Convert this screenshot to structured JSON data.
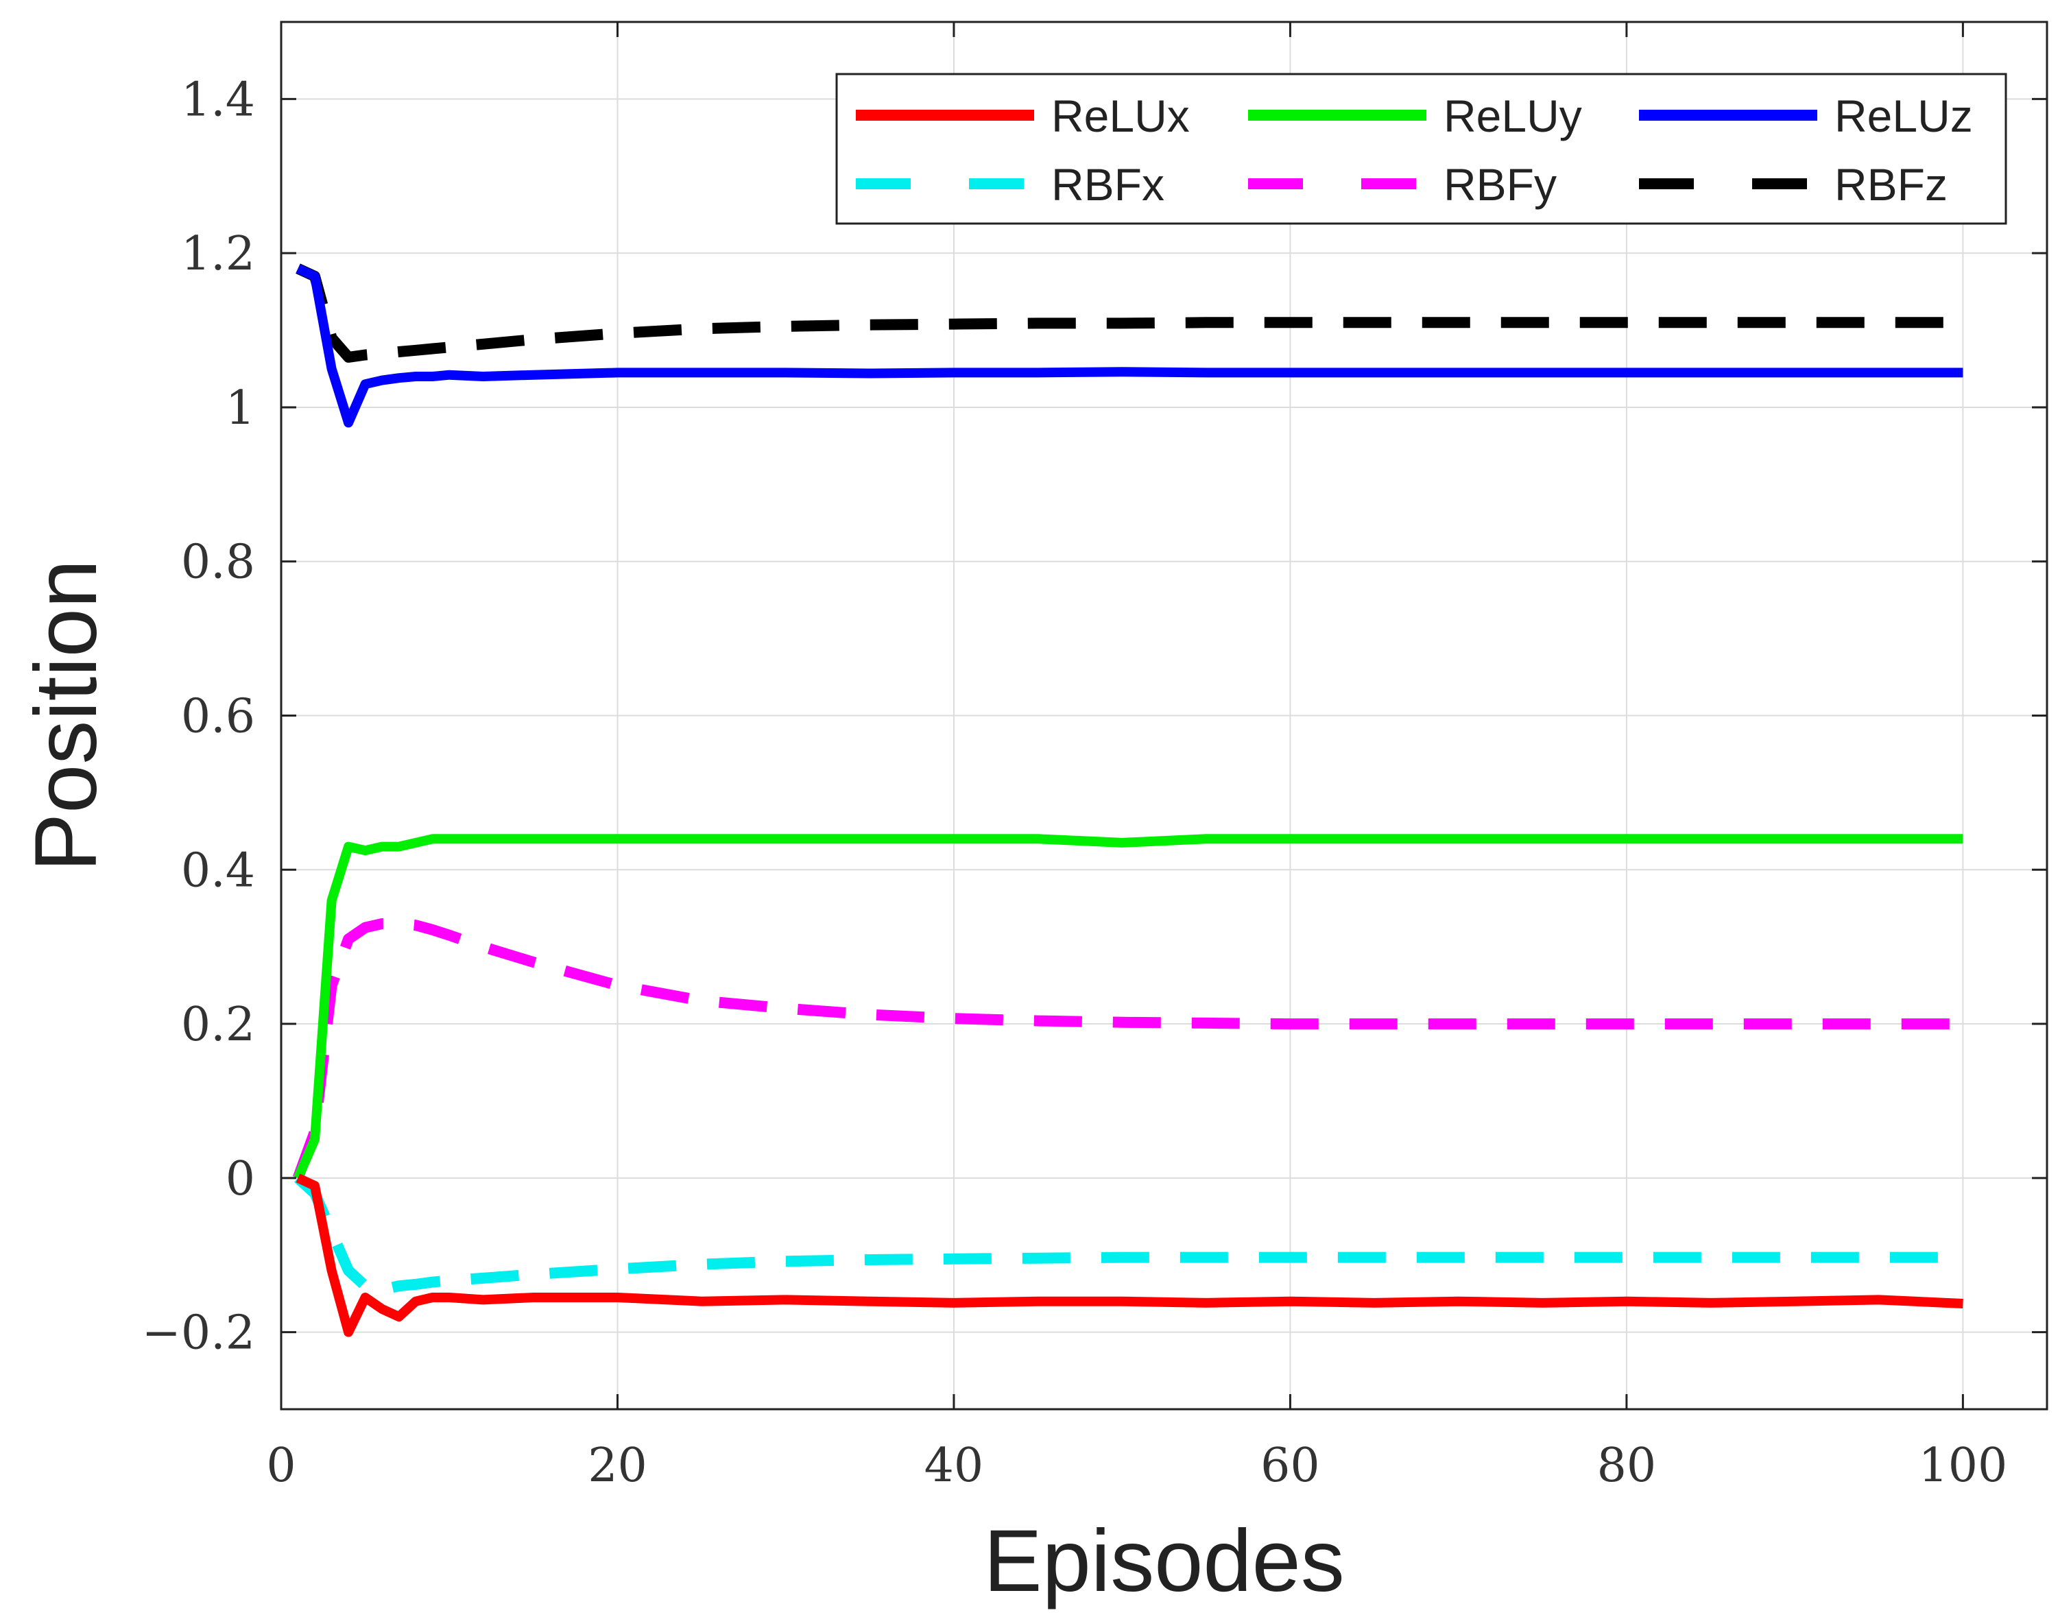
{
  "chart_data": {
    "type": "line",
    "xlabel": "Episodes",
    "ylabel": "Position",
    "xlim": [
      0,
      105
    ],
    "ylim": [
      -0.3,
      1.5
    ],
    "xticks": [
      0,
      20,
      40,
      60,
      80,
      100
    ],
    "yticks": [
      -0.2,
      0,
      0.2,
      0.4,
      0.6,
      0.8,
      1,
      1.2,
      1.4
    ],
    "xtick_labels": [
      "0",
      "20",
      "40",
      "60",
      "80",
      "100"
    ],
    "ytick_labels": [
      "−0.2",
      "0",
      "0.2",
      "0.4",
      "0.6",
      "0.8",
      "1",
      "1.2",
      "1.4"
    ],
    "grid": true,
    "legend_position": "top-right",
    "x": [
      1,
      2,
      3,
      4,
      5,
      6,
      7,
      8,
      9,
      10,
      12,
      15,
      20,
      25,
      30,
      35,
      40,
      45,
      50,
      55,
      60,
      65,
      70,
      75,
      80,
      85,
      90,
      95,
      100
    ],
    "series": [
      {
        "name": "ReLUx",
        "color": "#ff0000",
        "style": "solid",
        "values": [
          0,
          -0.01,
          -0.12,
          -0.2,
          -0.155,
          -0.17,
          -0.18,
          -0.16,
          -0.155,
          -0.155,
          -0.158,
          -0.155,
          -0.155,
          -0.16,
          -0.158,
          -0.16,
          -0.162,
          -0.16,
          -0.16,
          -0.162,
          -0.16,
          -0.162,
          -0.16,
          -0.162,
          -0.16,
          -0.162,
          -0.16,
          -0.158,
          -0.163
        ]
      },
      {
        "name": "ReLUy",
        "color": "#00ee00",
        "style": "solid",
        "values": [
          0,
          0.05,
          0.36,
          0.43,
          0.425,
          0.43,
          0.43,
          0.435,
          0.44,
          0.44,
          0.44,
          0.44,
          0.44,
          0.44,
          0.44,
          0.44,
          0.44,
          0.44,
          0.435,
          0.44,
          0.44,
          0.44,
          0.44,
          0.44,
          0.44,
          0.44,
          0.44,
          0.44,
          0.44
        ]
      },
      {
        "name": "ReLUz",
        "color": "#0000ff",
        "style": "solid",
        "values": [
          1.18,
          1.17,
          1.05,
          0.98,
          1.03,
          1.035,
          1.038,
          1.04,
          1.04,
          1.042,
          1.04,
          1.042,
          1.045,
          1.045,
          1.045,
          1.044,
          1.045,
          1.045,
          1.046,
          1.045,
          1.045,
          1.045,
          1.045,
          1.045,
          1.045,
          1.045,
          1.045,
          1.045,
          1.045
        ]
      },
      {
        "name": "RBFx",
        "color": "#00eeee",
        "style": "dashed",
        "values": [
          0,
          -0.02,
          -0.07,
          -0.12,
          -0.14,
          -0.145,
          -0.14,
          -0.138,
          -0.135,
          -0.133,
          -0.13,
          -0.125,
          -0.118,
          -0.112,
          -0.108,
          -0.106,
          -0.105,
          -0.104,
          -0.103,
          -0.103,
          -0.103,
          -0.103,
          -0.103,
          -0.103,
          -0.103,
          -0.103,
          -0.103,
          -0.103,
          -0.103
        ]
      },
      {
        "name": "RBFy",
        "color": "#ff00ff",
        "style": "dashed",
        "values": [
          0,
          0.06,
          0.25,
          0.31,
          0.325,
          0.33,
          0.33,
          0.328,
          0.322,
          0.315,
          0.3,
          0.28,
          0.25,
          0.23,
          0.22,
          0.212,
          0.207,
          0.204,
          0.202,
          0.201,
          0.2,
          0.2,
          0.2,
          0.2,
          0.2,
          0.2,
          0.2,
          0.2,
          0.2
        ]
      },
      {
        "name": "RBFz",
        "color": "#000000",
        "style": "dashed",
        "values": [
          1.18,
          1.17,
          1.09,
          1.065,
          1.068,
          1.07,
          1.072,
          1.074,
          1.076,
          1.078,
          1.082,
          1.088,
          1.096,
          1.102,
          1.105,
          1.107,
          1.108,
          1.109,
          1.109,
          1.11,
          1.11,
          1.11,
          1.11,
          1.11,
          1.11,
          1.11,
          1.11,
          1.11,
          1.11
        ]
      }
    ]
  }
}
